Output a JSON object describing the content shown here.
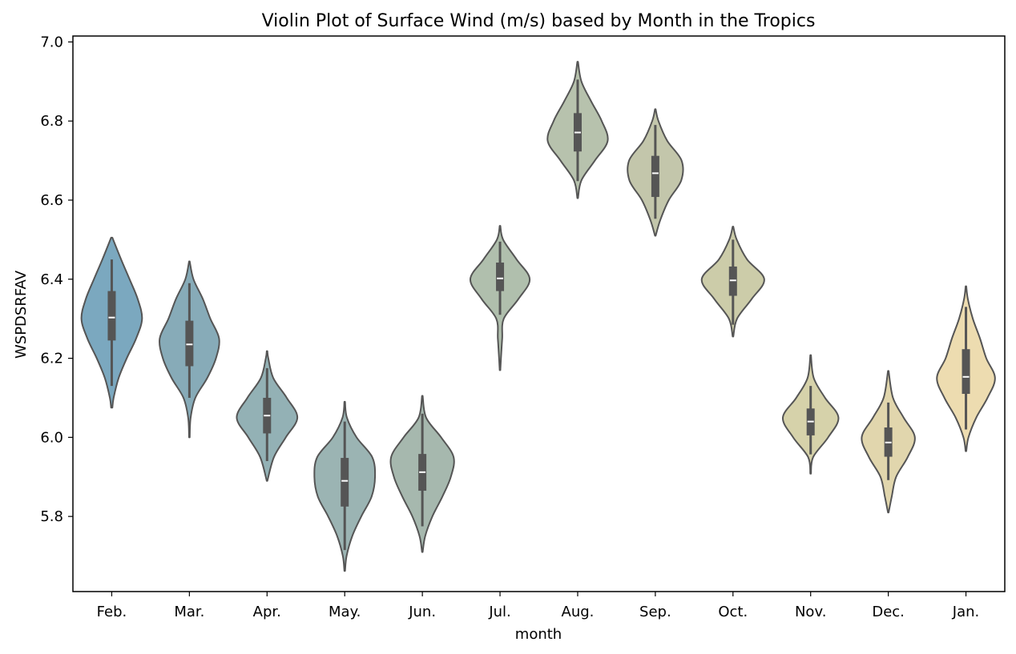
{
  "chart_data": {
    "type": "violin",
    "title": "Violin Plot of Surface Wind (m/s) based by Month in the Tropics",
    "xlabel": "month",
    "ylabel": "WSPDSRFAV",
    "ylim": [
      5.61,
      7.015
    ],
    "yticks": [
      5.8,
      6.0,
      6.2,
      6.4,
      6.6,
      6.8,
      7.0
    ],
    "ytick_labels": [
      "5.8",
      "6.0",
      "6.2",
      "6.4",
      "6.6",
      "6.8",
      "7.0"
    ],
    "grid": false,
    "categories": [
      "Feb.",
      "Mar.",
      "Apr.",
      "May.",
      "Jun.",
      "Jul.",
      "Aug.",
      "Sep.",
      "Oct.",
      "Nov.",
      "Dec.",
      "Jan."
    ],
    "colors": [
      "#7ba8bf",
      "#87abb8",
      "#93b1b5",
      "#9bb4b3",
      "#a6b8ae",
      "#b0bfad",
      "#b7c2ad",
      "#c3c6ab",
      "#cccca9",
      "#d6d2aa",
      "#e1d6ad",
      "#eddcb0"
    ],
    "line_color": "#555555",
    "median_color": "#ffffff",
    "stats": [
      {
        "min": 6.13,
        "q1": 6.245,
        "median": 6.303,
        "q3": 6.37,
        "max": 6.45
      },
      {
        "min": 6.1,
        "q1": 6.18,
        "median": 6.235,
        "q3": 6.295,
        "max": 6.39
      },
      {
        "min": 5.94,
        "q1": 6.01,
        "median": 6.055,
        "q3": 6.1,
        "max": 6.175
      },
      {
        "min": 5.715,
        "q1": 5.825,
        "median": 5.89,
        "q3": 5.948,
        "max": 6.04
      },
      {
        "min": 5.775,
        "q1": 5.865,
        "median": 5.912,
        "q3": 5.958,
        "max": 6.06
      },
      {
        "min": 6.31,
        "q1": 6.37,
        "median": 6.402,
        "q3": 6.442,
        "max": 6.495
      },
      {
        "min": 6.648,
        "q1": 6.723,
        "median": 6.771,
        "q3": 6.82,
        "max": 6.905
      },
      {
        "min": 6.553,
        "q1": 6.608,
        "median": 6.668,
        "q3": 6.712,
        "max": 6.79
      },
      {
        "min": 6.285,
        "q1": 6.358,
        "median": 6.397,
        "q3": 6.432,
        "max": 6.5
      },
      {
        "min": 5.957,
        "q1": 6.005,
        "median": 6.04,
        "q3": 6.073,
        "max": 6.13
      },
      {
        "min": 5.892,
        "q1": 5.951,
        "median": 5.987,
        "q3": 6.025,
        "max": 6.088
      },
      {
        "min": 6.02,
        "q1": 6.11,
        "median": 6.153,
        "q3": 6.223,
        "max": 6.33
      }
    ],
    "violins": [
      {
        "values": [
          6.075,
          6.1,
          6.15,
          6.2,
          6.25,
          6.3,
          6.35,
          6.4,
          6.45,
          6.505
        ],
        "density": [
          0.02,
          0.06,
          0.22,
          0.48,
          0.78,
          0.97,
          0.83,
          0.57,
          0.3,
          0.02
        ]
      },
      {
        "values": [
          6.0,
          6.05,
          6.1,
          6.15,
          6.2,
          6.25,
          6.3,
          6.35,
          6.4,
          6.445
        ],
        "density": [
          0.01,
          0.04,
          0.19,
          0.57,
          0.85,
          0.95,
          0.67,
          0.43,
          0.13,
          0.01
        ]
      },
      {
        "values": [
          5.89,
          5.95,
          6.0,
          6.05,
          6.1,
          6.15,
          6.2,
          6.218
        ],
        "density": [
          0.01,
          0.22,
          0.6,
          0.97,
          0.63,
          0.2,
          0.04,
          0.01
        ]
      },
      {
        "values": [
          5.662,
          5.7,
          5.75,
          5.8,
          5.85,
          5.9,
          5.95,
          6.0,
          6.05,
          6.09
        ],
        "density": [
          0.01,
          0.06,
          0.24,
          0.53,
          0.86,
          0.97,
          0.88,
          0.38,
          0.07,
          0.01
        ]
      },
      {
        "values": [
          5.71,
          5.75,
          5.8,
          5.85,
          5.9,
          5.95,
          6.0,
          6.05,
          6.105
        ],
        "density": [
          0.01,
          0.09,
          0.32,
          0.64,
          0.91,
          1.0,
          0.6,
          0.12,
          0.01
        ]
      },
      {
        "values": [
          6.17,
          6.2,
          6.25,
          6.3,
          6.35,
          6.4,
          6.45,
          6.5,
          6.535
        ],
        "density": [
          0.01,
          0.03,
          0.07,
          0.12,
          0.59,
          0.95,
          0.53,
          0.1,
          0.01
        ]
      },
      {
        "values": [
          6.605,
          6.65,
          6.7,
          6.75,
          6.8,
          6.85,
          6.9,
          6.95
        ],
        "density": [
          0.01,
          0.12,
          0.55,
          0.96,
          0.77,
          0.43,
          0.12,
          0.01
        ]
      },
      {
        "values": [
          6.51,
          6.55,
          6.6,
          6.65,
          6.7,
          6.75,
          6.8,
          6.83
        ],
        "density": [
          0.01,
          0.16,
          0.43,
          0.83,
          0.84,
          0.38,
          0.1,
          0.01
        ]
      },
      {
        "values": [
          6.255,
          6.3,
          6.35,
          6.4,
          6.45,
          6.5,
          6.533
        ],
        "density": [
          0.01,
          0.13,
          0.6,
          1.0,
          0.45,
          0.12,
          0.01
        ]
      },
      {
        "values": [
          5.908,
          5.95,
          6.0,
          6.05,
          6.1,
          6.15,
          6.208
        ],
        "density": [
          0.01,
          0.08,
          0.56,
          0.89,
          0.46,
          0.1,
          0.01
        ]
      },
      {
        "values": [
          5.81,
          5.85,
          5.9,
          5.95,
          6.0,
          6.05,
          6.1,
          6.168
        ],
        "density": [
          0.01,
          0.11,
          0.25,
          0.62,
          0.85,
          0.49,
          0.15,
          0.01
        ]
      },
      {
        "values": [
          5.965,
          6.0,
          6.05,
          6.1,
          6.15,
          6.2,
          6.25,
          6.3,
          6.35,
          6.382
        ],
        "density": [
          0.01,
          0.08,
          0.33,
          0.69,
          0.93,
          0.65,
          0.45,
          0.22,
          0.06,
          0.01
        ]
      }
    ]
  }
}
